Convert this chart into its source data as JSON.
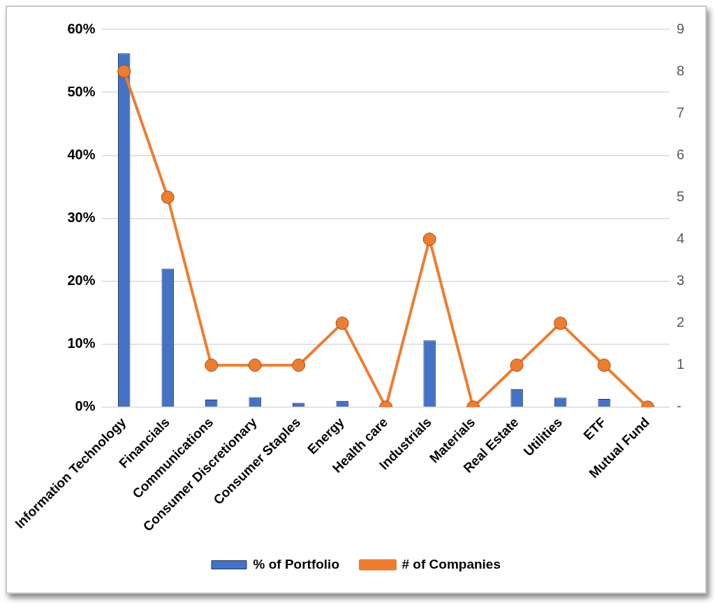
{
  "chart_data": {
    "type": "bar",
    "categories": [
      "Information Technology",
      "Financials",
      "Communications",
      "Consumer Discretionary",
      "Consumer Staples",
      "Energy",
      "Health care",
      "Industrials",
      "Materials",
      "Real Estate",
      "Utilities",
      "ETF",
      "Mutual Fund"
    ],
    "series": [
      {
        "name": "% of Portfolio",
        "color": "#4472c4",
        "values": [
          56.2,
          22,
          1.2,
          1.6,
          0.7,
          1,
          0,
          10.6,
          0,
          2.9,
          1.5,
          1.3,
          0
        ]
      },
      {
        "name": "# of Companies",
        "type": "line",
        "axis": "y2",
        "color": "#ed7d31",
        "marker": "circle",
        "values": [
          8,
          5,
          1,
          1,
          1,
          2,
          0,
          4,
          0,
          1,
          2,
          1,
          0
        ]
      }
    ],
    "ylim": [
      0,
      60
    ],
    "yticks": [
      {
        "value": 0,
        "label": "0%"
      },
      {
        "value": 10,
        "label": "10%"
      },
      {
        "value": 20,
        "label": "20%"
      },
      {
        "value": 30,
        "label": "30%"
      },
      {
        "value": 40,
        "label": "40%"
      },
      {
        "value": 50,
        "label": "50%"
      },
      {
        "value": 60,
        "label": "60%"
      }
    ],
    "y2lim": [
      0,
      9
    ],
    "y2ticks": [
      {
        "value": 0,
        "label": "-"
      },
      1,
      2,
      3,
      4,
      5,
      6,
      7,
      8,
      9
    ],
    "grid": "y",
    "legend": "bottom"
  }
}
